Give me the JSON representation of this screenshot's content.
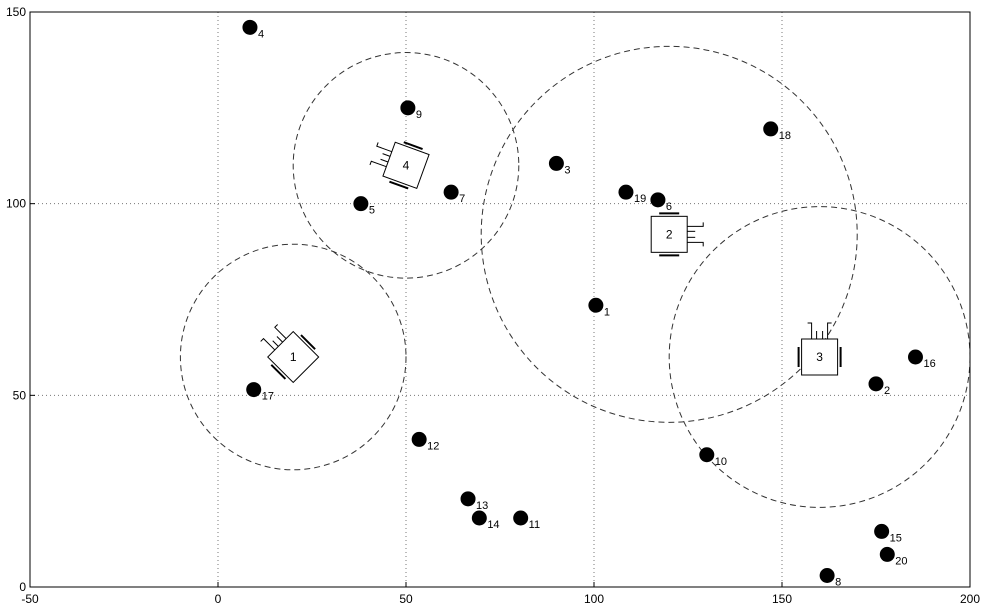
{
  "chart_data": {
    "type": "scatter",
    "title": "",
    "xlabel": "",
    "ylabel": "",
    "xlim": [
      -50,
      200
    ],
    "ylim": [
      0,
      150
    ],
    "grid": true,
    "grid_style": "dotted",
    "x_ticks": [
      "-50",
      "0",
      "50",
      "100",
      "150",
      "200"
    ],
    "y_ticks": [
      "0",
      "50",
      "100",
      "150"
    ],
    "colors": {
      "points": "#000000",
      "circles": "#333333",
      "grid": "#777777"
    },
    "points": [
      {
        "label": "1",
        "x": 100.5,
        "y": 73.5
      },
      {
        "label": "2",
        "x": 175,
        "y": 53
      },
      {
        "label": "3",
        "x": 90,
        "y": 110.5
      },
      {
        "label": "4",
        "x": 8.5,
        "y": 146
      },
      {
        "label": "5",
        "x": 38,
        "y": 100
      },
      {
        "label": "6",
        "x": 117,
        "y": 101
      },
      {
        "label": "7",
        "x": 62,
        "y": 103
      },
      {
        "label": "8",
        "x": 162,
        "y": 3
      },
      {
        "label": "9",
        "x": 50.5,
        "y": 125
      },
      {
        "label": "10",
        "x": 130,
        "y": 34.5
      },
      {
        "label": "11",
        "x": 80.5,
        "y": 18
      },
      {
        "label": "12",
        "x": 53.5,
        "y": 38.5
      },
      {
        "label": "13",
        "x": 66.5,
        "y": 23
      },
      {
        "label": "14",
        "x": 69.5,
        "y": 18
      },
      {
        "label": "15",
        "x": 176.5,
        "y": 14.5
      },
      {
        "label": "16",
        "x": 185.5,
        "y": 60
      },
      {
        "label": "17",
        "x": 9.5,
        "y": 51.5
      },
      {
        "label": "18",
        "x": 147,
        "y": 119.5
      },
      {
        "label": "19",
        "x": 108.5,
        "y": 103
      },
      {
        "label": "20",
        "x": 178,
        "y": 8.5
      }
    ],
    "robots": [
      {
        "label": "1",
        "x": 20,
        "y": 60,
        "radius": 30,
        "heading": 135
      },
      {
        "label": "4",
        "x": 50,
        "y": 110,
        "radius": 30,
        "heading": 160
      },
      {
        "label": "2",
        "x": 120,
        "y": 92,
        "radius": 50,
        "heading": 0
      },
      {
        "label": "3",
        "x": 160,
        "y": 60,
        "radius": 40,
        "heading": 90
      }
    ]
  }
}
